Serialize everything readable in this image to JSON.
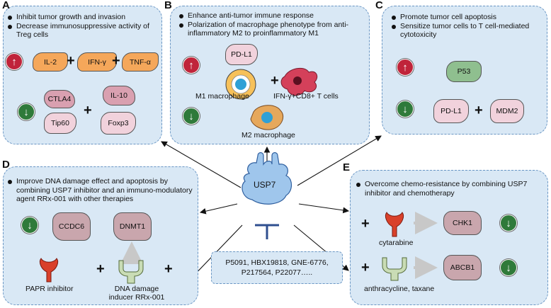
{
  "panels": {
    "A": {
      "label": "A",
      "bullets": [
        "Inhibit tumor growth and invasion",
        "Decrease immunosuppressive activity of Treg cells"
      ],
      "up_proteins": [
        "IL-2",
        "IFN-γ",
        "TNF-α"
      ],
      "down_proteins": [
        "CTLA4",
        "IL-10",
        "Tip60",
        "Foxp3"
      ]
    },
    "B": {
      "label": "B",
      "bullets": [
        "Enhance anti-tumor immune response",
        "Polarization of macrophage phenotype from anti-inflammatory M2 to proinflammatory M1"
      ],
      "up_protein": "PD-L1",
      "m1_label": "M1 macrophage",
      "tcell_label": "IFN-γ+CD8+ T cells",
      "m2_label": "M2 macrophage"
    },
    "C": {
      "label": "C",
      "bullets": [
        "Promote tumor cell apoptosis",
        "Sensitize tumor cells to T cell-mediated cytotoxicity"
      ],
      "up_protein": "P53",
      "down_proteins": [
        "PD-L1",
        "MDM2"
      ]
    },
    "D": {
      "label": "D",
      "bullets": [
        "Improve DNA damage effect and apoptosis by combining USP7 inhibitor and an immuno-modulatory agent RRx-001 with other therapies"
      ],
      "down_proteins": [
        "CCDC6",
        "DNMT1"
      ],
      "drug1": "PAPR inhibitor",
      "drug2": "DNA damage inducer RRx-001"
    },
    "E": {
      "label": "E",
      "bullets": [
        "Overcome chemo-resistance by combining USP7 inhibitor and chemotherapy"
      ],
      "proteins": [
        "CHK1",
        "ABCB1"
      ],
      "drug1": "cytarabine",
      "drug2": "anthracycline, taxane"
    }
  },
  "center": {
    "label": "USP7",
    "inhibitors": [
      "P5091, HBX19818, GNE-6776,",
      "P217564, P22077….."
    ]
  },
  "colors": {
    "panel_bg": "#d9e8f5",
    "panel_border": "#6a96c4",
    "up": "#c0243a",
    "down": "#2f7a3a",
    "usp7": "#9fc6ec",
    "inhibitor": "#2f4f8f"
  }
}
